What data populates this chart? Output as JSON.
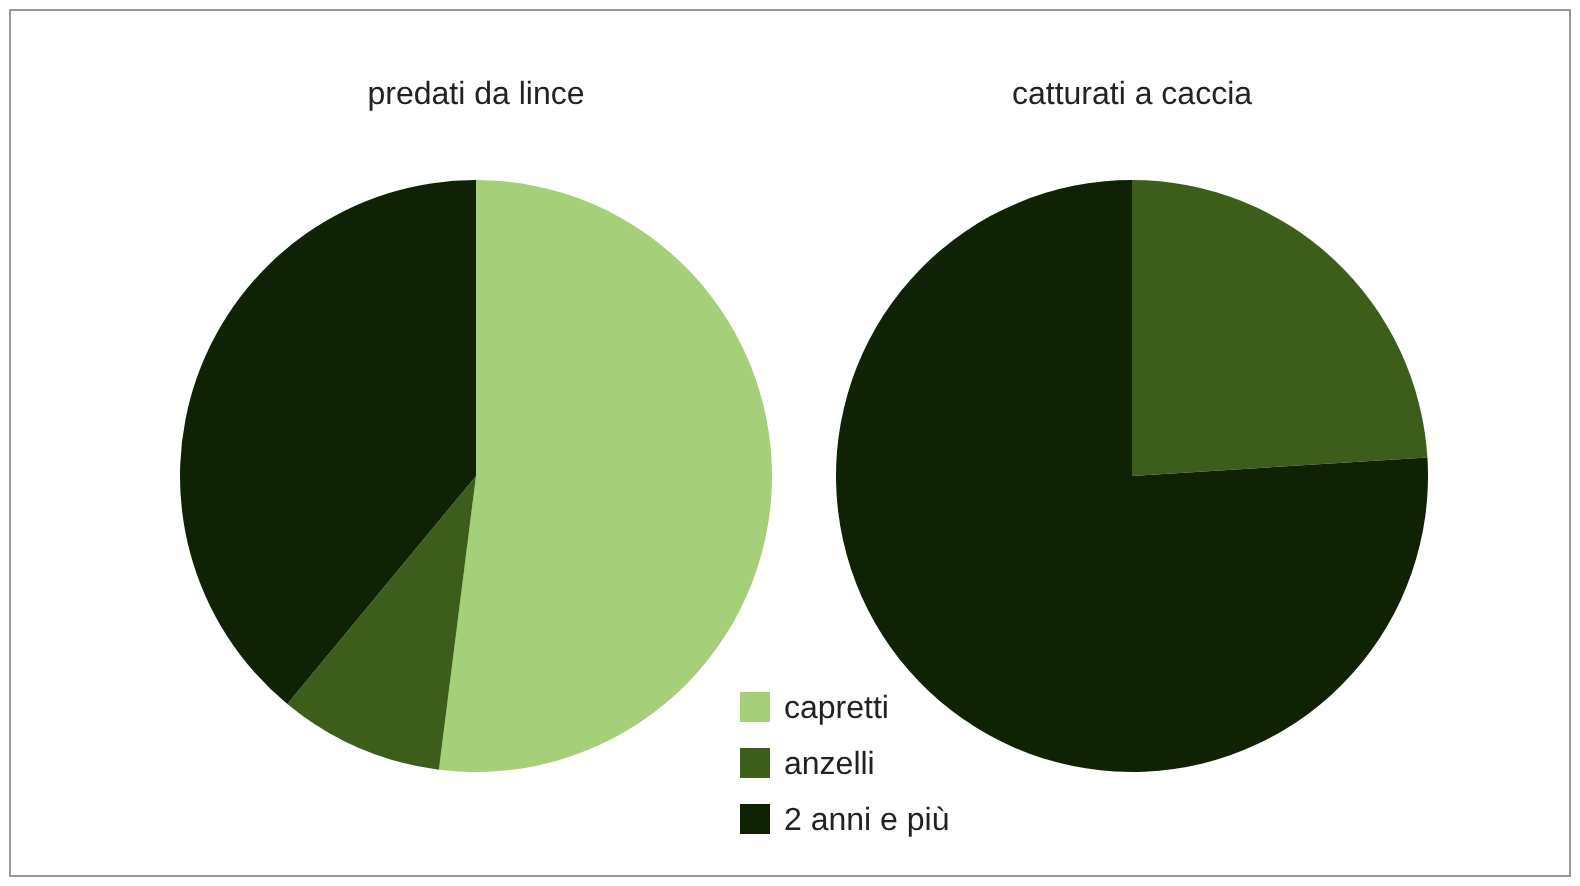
{
  "chart_data": {
    "type": "pie",
    "categories": [
      "capretti",
      "anzelli",
      "2 anni e più"
    ],
    "colors": [
      "#a6cf7a",
      "#3d5e1a",
      "#0f2204"
    ],
    "legend": "bottom",
    "series": [
      {
        "name": "predati da lince",
        "values": [
          52,
          9,
          39
        ]
      },
      {
        "name": "catturati a caccia",
        "values": [
          0,
          24,
          76
        ]
      }
    ]
  }
}
